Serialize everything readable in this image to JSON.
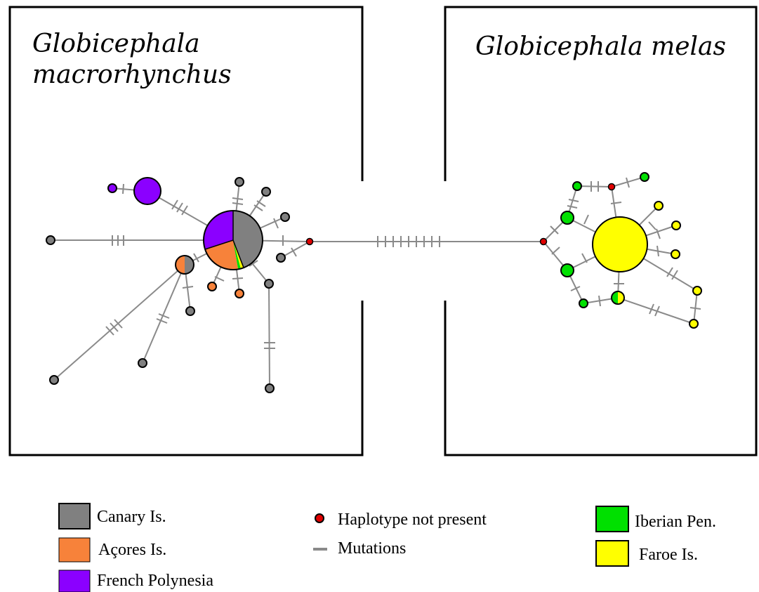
{
  "panels": {
    "left_title_line1": "Globicephala",
    "left_title_line2": "macrorhynchus",
    "right_title": "Globicephala melas"
  },
  "legend": {
    "canary": {
      "label": "Canary Is.",
      "color": "#808080"
    },
    "acores": {
      "label": "Açores Is.",
      "color": "#f7823a"
    },
    "french_polynesia": {
      "label": "French Polynesia",
      "color": "#8b00ff"
    },
    "haplotype_not_present": {
      "label": "Haplotype not present",
      "color": "#e00000"
    },
    "mutations": {
      "label": "Mutations",
      "color": "#808080"
    },
    "iberian": {
      "label": "Iberian Pen.",
      "color": "#00e000"
    },
    "faroe": {
      "label": "Faroe Is.",
      "color": "#ffff00"
    }
  }
}
